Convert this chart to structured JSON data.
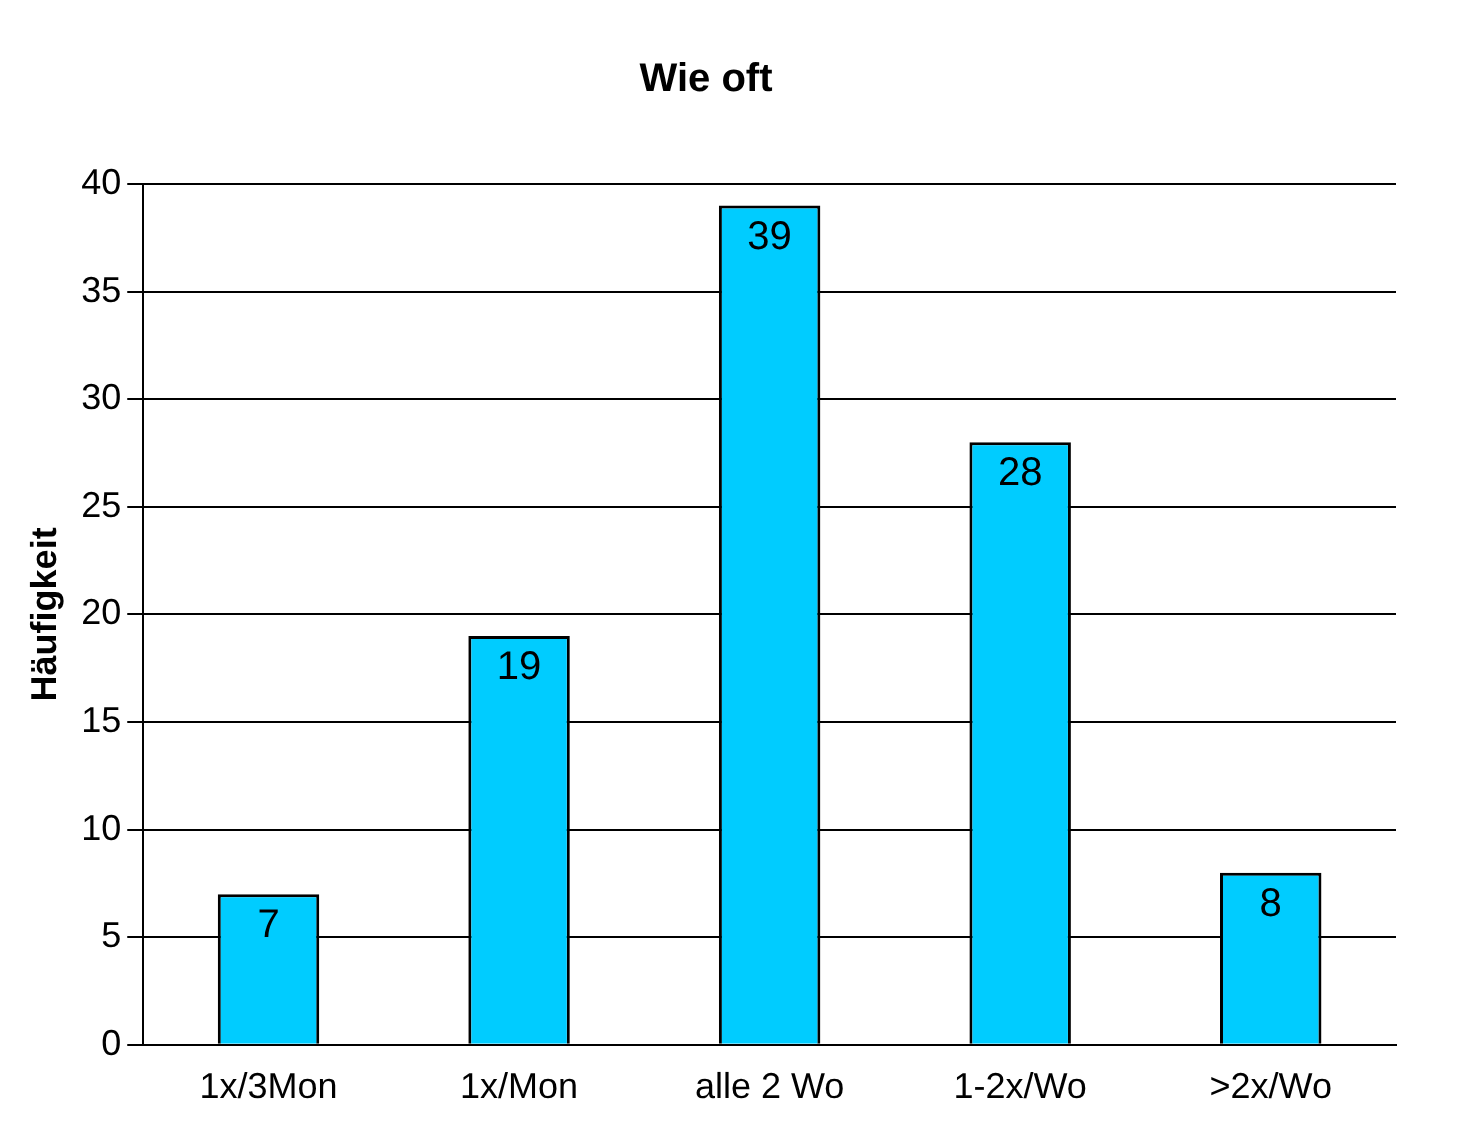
{
  "chart_data": {
    "type": "bar",
    "title": "Wie oft",
    "ylabel": "Häufigkeit",
    "categories": [
      "1x/3Mon",
      "1x/Mon",
      "alle 2 Wo",
      "1-2x/Wo",
      ">2x/Wo"
    ],
    "values": [
      7,
      19,
      39,
      28,
      8
    ],
    "color": "#00ccff",
    "ylim": [
      0,
      40
    ],
    "yticks": [
      0,
      5,
      10,
      15,
      20,
      25,
      30,
      35,
      40
    ],
    "grid": "y",
    "data_labels": true,
    "legend": false
  }
}
